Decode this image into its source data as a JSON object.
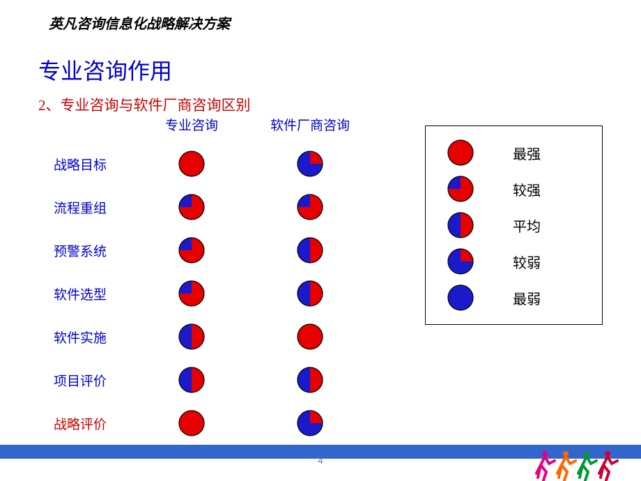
{
  "header": "英凡咨询信息化战略解决方案",
  "title": "专业咨询作用",
  "subtitle": "2、专业咨询与软件厂商咨询区别",
  "columns": {
    "c1": "专业咨询",
    "c2": "软件厂商咨询"
  },
  "colors": {
    "red": "#e60000",
    "blue": "#1a1acc",
    "stroke": "#000000",
    "title_color": "#0000cc",
    "subtitle_color": "#cc0000"
  },
  "pie_radius": 18,
  "legend_pie_radius": 18,
  "rows": [
    {
      "label": "战略目标",
      "highlight": false,
      "v1": 1.0,
      "v2": 0.25
    },
    {
      "label": "流程重组",
      "highlight": false,
      "v1": 0.75,
      "v2": 0.75
    },
    {
      "label": "预警系统",
      "highlight": false,
      "v1": 0.75,
      "v2": 0.5
    },
    {
      "label": "软件选型",
      "highlight": false,
      "v1": 0.75,
      "v2": 0.5
    },
    {
      "label": "软件实施",
      "highlight": false,
      "v1": 0.5,
      "v2": 1.0
    },
    {
      "label": "项目评价",
      "highlight": false,
      "v1": 0.5,
      "v2": 0.5
    },
    {
      "label": "战略评价",
      "highlight": true,
      "v1": 1.0,
      "v2": 0.25
    }
  ],
  "legend": [
    {
      "label": "最强",
      "v": 1.0
    },
    {
      "label": "较强",
      "v": 0.75
    },
    {
      "label": "平均",
      "v": 0.5
    },
    {
      "label": "较弱",
      "v": 0.25
    },
    {
      "label": "最弱",
      "v": 0.0
    }
  ],
  "page_number": "4",
  "runner_colors": [
    "#e6007e",
    "#ff6600",
    "#009933",
    "#cc0033"
  ]
}
